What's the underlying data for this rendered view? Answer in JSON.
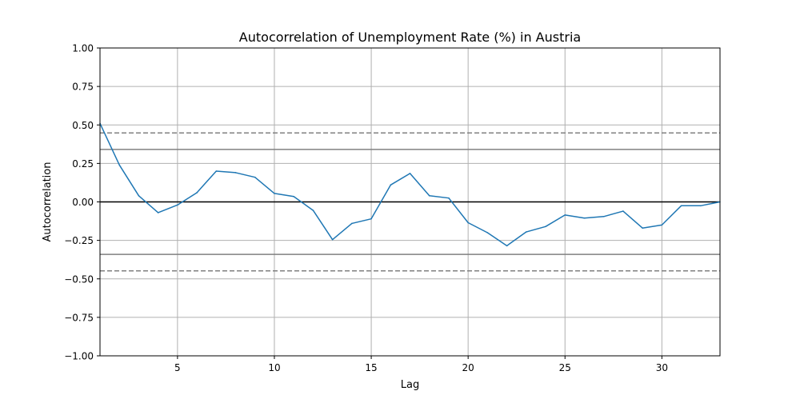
{
  "chart_data": {
    "type": "line",
    "title": "Autocorrelation of Unemployment Rate (%) in Austria",
    "xlabel": "Lag",
    "ylabel": "Autocorrelation",
    "xlim": [
      1,
      33
    ],
    "ylim": [
      -1.0,
      1.0
    ],
    "grid": true,
    "x_ticks": [
      5,
      10,
      15,
      20,
      25,
      30
    ],
    "x_tick_labels": [
      "5",
      "10",
      "15",
      "20",
      "25",
      "30"
    ],
    "y_ticks": [
      -1.0,
      -0.75,
      -0.5,
      -0.25,
      0.0,
      0.25,
      0.5,
      0.75,
      1.0
    ],
    "y_tick_labels": [
      "−1.00",
      "−0.75",
      "−0.50",
      "−0.25",
      "0.00",
      "0.25",
      "0.50",
      "0.75",
      "1.00"
    ],
    "series": [
      {
        "x": [
          1,
          2,
          3,
          4,
          5,
          6,
          7,
          8,
          9,
          10,
          11,
          12,
          13,
          14,
          15,
          16,
          17,
          18,
          19,
          20,
          21,
          22,
          23,
          24,
          25,
          26,
          27,
          28,
          29,
          30,
          31,
          32,
          33
        ],
        "values": [
          0.51,
          0.24,
          0.04,
          -0.07,
          -0.02,
          0.06,
          0.2,
          0.19,
          0.16,
          0.055,
          0.035,
          -0.055,
          -0.245,
          -0.14,
          -0.11,
          0.11,
          0.185,
          0.04,
          0.025,
          -0.135,
          -0.2,
          -0.285,
          -0.195,
          -0.16,
          -0.085,
          -0.105,
          -0.095,
          -0.06,
          -0.17,
          -0.15,
          -0.025,
          -0.025,
          0.0
        ],
        "color": "#1f77b4"
      }
    ],
    "reference_lines": {
      "zero": {
        "y": 0.0,
        "color": "#000000"
      },
      "confidence_95": {
        "y": [
          0.341,
          -0.341
        ],
        "color": "#808080",
        "style": "solid"
      },
      "confidence_99": {
        "y": [
          0.448,
          -0.448
        ],
        "color": "#808080",
        "style": "dashed"
      }
    }
  }
}
